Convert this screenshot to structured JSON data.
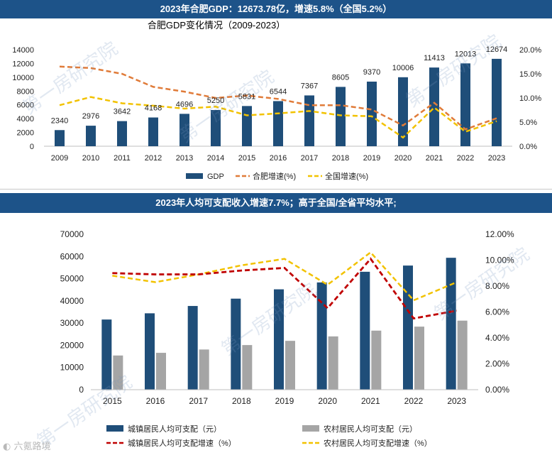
{
  "top_banner": "2023年合肥GDP：12673.78亿，增速5.8%（全国5.2%）",
  "bottom_banner": "2023年人均可支配收入增速7.7%；高于全国/全省平均水平;",
  "watermark": "第一房研究院",
  "brand": "六氪路境",
  "colors": {
    "banner": "#1d5389",
    "bar_dark": "#1f4e79",
    "bar_gray": "#a5a5a5",
    "orange": "#e07b39",
    "yellow": "#f2c200",
    "red": "#c00000"
  },
  "chart_data": [
    {
      "type": "bar+line",
      "title": "合肥GDP变化情况（2009-2023）",
      "categories": [
        "2009",
        "2010",
        "2011",
        "2012",
        "2013",
        "2014",
        "2015",
        "2016",
        "2017",
        "2018",
        "2019",
        "2020",
        "2021",
        "2022",
        "2023"
      ],
      "y_ticks": [
        "14000",
        "12000",
        "10000",
        "8000",
        "6000",
        "4000",
        "2000",
        "0"
      ],
      "y2_ticks": [
        "20.0%",
        "15.0%",
        "10.0%",
        "5.0%",
        "0.0%"
      ],
      "ylim": [
        0,
        14000
      ],
      "y2lim": [
        0,
        20
      ],
      "series": [
        {
          "name": "GDP",
          "kind": "bar",
          "values": [
            2340,
            2976,
            3642,
            4168,
            4696,
            5250,
            5831,
            6544,
            7367,
            8605,
            9370,
            10006,
            11413,
            12013,
            12674
          ],
          "labels": [
            "2340",
            "2976",
            "3642",
            "4168",
            "4696",
            "5250",
            "5831",
            "6544",
            "7367",
            "8605",
            "9370",
            "10006",
            "11413",
            "12013",
            "12674"
          ]
        },
        {
          "name": "合肥增速(%)",
          "kind": "line",
          "axis": "right",
          "dash": "dashed",
          "values": [
            16.5,
            16.2,
            15.0,
            12.3,
            11.3,
            10.0,
            10.5,
            9.8,
            8.5,
            8.5,
            7.6,
            4.3,
            9.0,
            3.5,
            5.8
          ]
        },
        {
          "name": "全国增速(%)",
          "kind": "line",
          "axis": "right",
          "dash": "dashed",
          "values": [
            8.5,
            10.2,
            8.9,
            8.4,
            7.8,
            8.2,
            6.4,
            6.8,
            7.3,
            6.4,
            6.2,
            1.8,
            8.0,
            3.0,
            5.2
          ]
        }
      ],
      "legend": [
        "GDP",
        "合肥增速(%)",
        "全国增速(%)"
      ]
    },
    {
      "type": "bar+line",
      "title": "",
      "categories": [
        "2015",
        "2016",
        "2017",
        "2018",
        "2019",
        "2020",
        "2021",
        "2022",
        "2023"
      ],
      "y_ticks": [
        "70000",
        "60000",
        "50000",
        "40000",
        "30000",
        "20000",
        "10000",
        "0"
      ],
      "y2_ticks": [
        "12.00%",
        "10.00%",
        "8.00%",
        "6.00%",
        "4.00%",
        "2.00%",
        "0.00%"
      ],
      "ylim": [
        0,
        70000
      ],
      "y2lim": [
        0,
        12
      ],
      "series": [
        {
          "name": "城镇居民人均可支配（元）",
          "kind": "bar",
          "values": [
            31600,
            34400,
            37700,
            41000,
            45200,
            48300,
            53100,
            55900,
            59400
          ]
        },
        {
          "name": "农村居民人均可支配（元）",
          "kind": "bar",
          "values": [
            15400,
            16600,
            18100,
            20100,
            22000,
            24000,
            26600,
            28400,
            31100
          ]
        },
        {
          "name": "城镇居民人均可支配增速（%）",
          "kind": "line",
          "axis": "right",
          "dash": "dashed",
          "values": [
            9.0,
            8.9,
            8.9,
            9.2,
            9.4,
            6.3,
            10.1,
            5.5,
            6.1
          ]
        },
        {
          "name": "农村居民人均可支配增速（%）",
          "kind": "line",
          "axis": "right",
          "dash": "dashed",
          "values": [
            8.8,
            8.3,
            8.9,
            9.6,
            10.1,
            8.1,
            10.6,
            6.9,
            8.3
          ]
        }
      ],
      "legend": [
        "城镇居民人均可支配（元）",
        "农村居民人均可支配（元）",
        "城镇居民人均可支配增速（%）",
        "农村居民人均可支配增速（%）"
      ]
    }
  ]
}
